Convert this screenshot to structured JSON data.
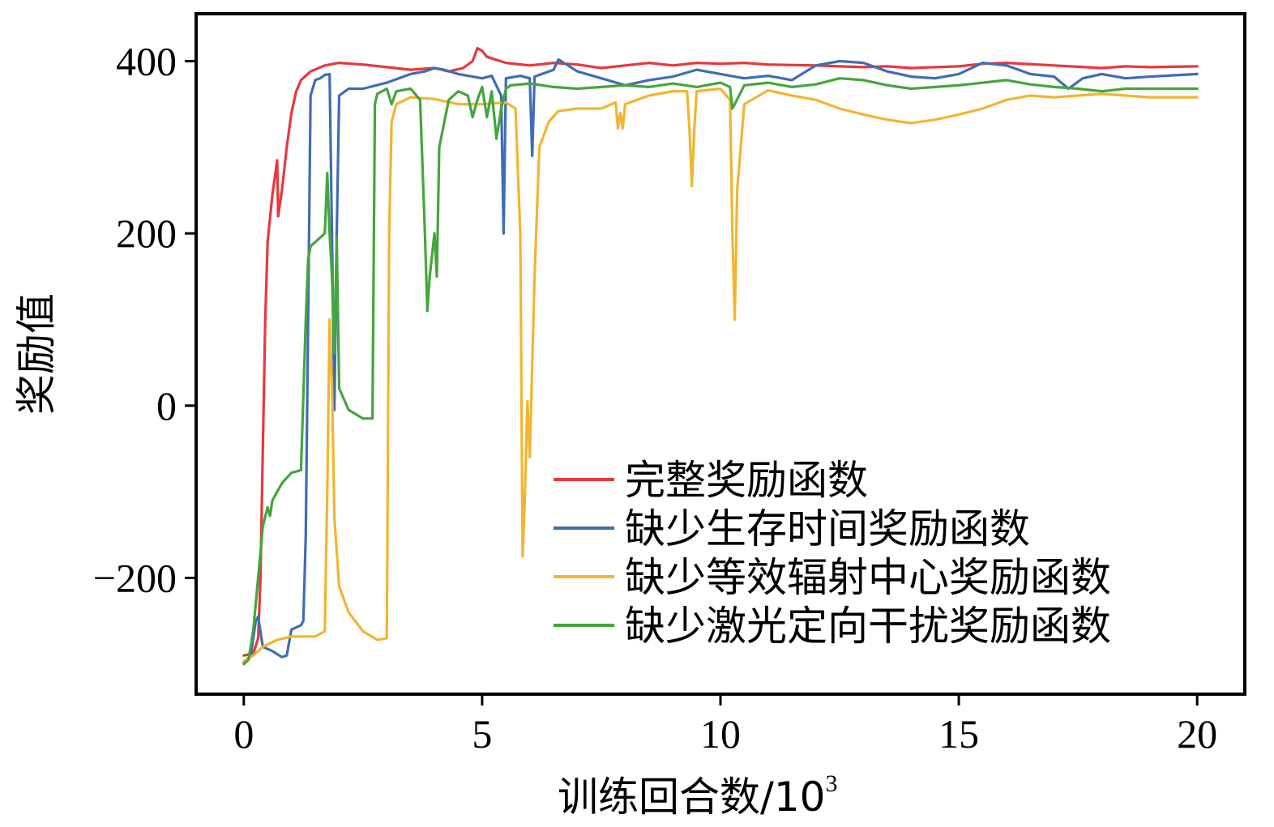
{
  "chart_data": {
    "type": "line",
    "xlabel": "训练回合数/10",
    "xlabel_sup": "3",
    "ylabel": "奖励值",
    "xlim": [
      -1,
      21
    ],
    "ylim": [
      -335,
      455
    ],
    "x_ticks": [
      0,
      5,
      10,
      15,
      20
    ],
    "y_ticks": [
      -200,
      0,
      200,
      400
    ],
    "x_tick_labels": [
      "0",
      "5",
      "10",
      "15",
      "20"
    ],
    "y_tick_labels": [
      "−200",
      "0",
      "200",
      "400"
    ],
    "grid": false,
    "legend_position": "bottom-right",
    "series": [
      {
        "name": "完整奖励函数",
        "color": "#e8383d",
        "points": [
          [
            0,
            -290
          ],
          [
            0.2,
            -288
          ],
          [
            0.3,
            -270
          ],
          [
            0.35,
            -200
          ],
          [
            0.4,
            -50
          ],
          [
            0.45,
            100
          ],
          [
            0.5,
            190
          ],
          [
            0.6,
            245
          ],
          [
            0.7,
            285
          ],
          [
            0.72,
            220
          ],
          [
            0.8,
            250
          ],
          [
            0.9,
            300
          ],
          [
            1.0,
            340
          ],
          [
            1.1,
            365
          ],
          [
            1.2,
            378
          ],
          [
            1.4,
            388
          ],
          [
            1.7,
            395
          ],
          [
            2.0,
            398
          ],
          [
            2.5,
            396
          ],
          [
            3.0,
            393
          ],
          [
            3.5,
            390
          ],
          [
            4.0,
            392
          ],
          [
            4.3,
            388
          ],
          [
            4.6,
            392
          ],
          [
            4.8,
            400
          ],
          [
            4.9,
            415
          ],
          [
            5.0,
            412
          ],
          [
            5.1,
            405
          ],
          [
            5.5,
            398
          ],
          [
            6.0,
            395
          ],
          [
            6.5,
            398
          ],
          [
            7.0,
            396
          ],
          [
            7.5,
            392
          ],
          [
            8.0,
            395
          ],
          [
            8.5,
            398
          ],
          [
            9.0,
            395
          ],
          [
            9.5,
            398
          ],
          [
            10.0,
            397
          ],
          [
            10.5,
            398
          ],
          [
            11.0,
            396
          ],
          [
            12.0,
            395
          ],
          [
            13.0,
            393
          ],
          [
            13.5,
            394
          ],
          [
            14.0,
            392
          ],
          [
            15.0,
            394
          ],
          [
            15.5,
            397
          ],
          [
            16.0,
            398
          ],
          [
            17.0,
            395
          ],
          [
            18.0,
            392
          ],
          [
            18.5,
            394
          ],
          [
            19.0,
            393
          ],
          [
            20.0,
            394
          ]
        ]
      },
      {
        "name": "缺少生存时间奖励函数",
        "color": "#3f6db5",
        "points": [
          [
            0,
            -298
          ],
          [
            0.15,
            -290
          ],
          [
            0.25,
            -250
          ],
          [
            0.3,
            -245
          ],
          [
            0.4,
            -280
          ],
          [
            0.6,
            -285
          ],
          [
            0.8,
            -292
          ],
          [
            0.9,
            -290
          ],
          [
            1.0,
            -260
          ],
          [
            1.2,
            -255
          ],
          [
            1.25,
            -250
          ],
          [
            1.3,
            -150
          ],
          [
            1.35,
            100
          ],
          [
            1.4,
            360
          ],
          [
            1.5,
            378
          ],
          [
            1.6,
            380
          ],
          [
            1.7,
            384
          ],
          [
            1.8,
            385
          ],
          [
            1.85,
            200
          ],
          [
            1.9,
            -5
          ],
          [
            1.95,
            200
          ],
          [
            2.0,
            360
          ],
          [
            2.2,
            368
          ],
          [
            2.5,
            368
          ],
          [
            3.0,
            375
          ],
          [
            3.5,
            385
          ],
          [
            3.8,
            388
          ],
          [
            4.0,
            392
          ],
          [
            4.2,
            390
          ],
          [
            4.5,
            385
          ],
          [
            5.0,
            380
          ],
          [
            5.2,
            383
          ],
          [
            5.4,
            360
          ],
          [
            5.45,
            200
          ],
          [
            5.5,
            380
          ],
          [
            5.8,
            383
          ],
          [
            6.0,
            380
          ],
          [
            6.05,
            290
          ],
          [
            6.1,
            382
          ],
          [
            6.5,
            390
          ],
          [
            6.6,
            402
          ],
          [
            6.8,
            395
          ],
          [
            7.0,
            388
          ],
          [
            7.5,
            380
          ],
          [
            8.0,
            372
          ],
          [
            8.5,
            378
          ],
          [
            9.0,
            382
          ],
          [
            9.5,
            390
          ],
          [
            10.0,
            385
          ],
          [
            10.5,
            380
          ],
          [
            11.0,
            383
          ],
          [
            11.5,
            378
          ],
          [
            12.0,
            395
          ],
          [
            12.5,
            400
          ],
          [
            13.0,
            398
          ],
          [
            13.5,
            388
          ],
          [
            14.0,
            382
          ],
          [
            14.5,
            380
          ],
          [
            15.0,
            385
          ],
          [
            15.5,
            398
          ],
          [
            16.0,
            395
          ],
          [
            16.5,
            385
          ],
          [
            17.0,
            382
          ],
          [
            17.3,
            368
          ],
          [
            17.6,
            380
          ],
          [
            18.0,
            385
          ],
          [
            18.5,
            380
          ],
          [
            19.0,
            382
          ],
          [
            20.0,
            385
          ]
        ]
      },
      {
        "name": "缺少等效辐射中心奖励函数",
        "color": "#f2b530",
        "points": [
          [
            0,
            -297
          ],
          [
            0.2,
            -290
          ],
          [
            0.4,
            -280
          ],
          [
            0.7,
            -272
          ],
          [
            1.0,
            -268
          ],
          [
            1.5,
            -268
          ],
          [
            1.7,
            -262
          ],
          [
            1.75,
            -100
          ],
          [
            1.8,
            100
          ],
          [
            1.85,
            25
          ],
          [
            1.9,
            -130
          ],
          [
            2.0,
            -210
          ],
          [
            2.2,
            -240
          ],
          [
            2.5,
            -262
          ],
          [
            2.8,
            -272
          ],
          [
            3.0,
            -270
          ],
          [
            3.05,
            200
          ],
          [
            3.1,
            330
          ],
          [
            3.2,
            350
          ],
          [
            3.5,
            358
          ],
          [
            4.0,
            356
          ],
          [
            4.5,
            350
          ],
          [
            5.0,
            350
          ],
          [
            5.5,
            352
          ],
          [
            5.7,
            345
          ],
          [
            5.8,
            200
          ],
          [
            5.85,
            -175
          ],
          [
            5.9,
            -100
          ],
          [
            5.95,
            5
          ],
          [
            6.0,
            -60
          ],
          [
            6.1,
            150
          ],
          [
            6.2,
            300
          ],
          [
            6.4,
            330
          ],
          [
            6.6,
            342
          ],
          [
            7.0,
            345
          ],
          [
            7.5,
            345
          ],
          [
            7.8,
            352
          ],
          [
            7.85,
            322
          ],
          [
            7.9,
            340
          ],
          [
            7.95,
            322
          ],
          [
            8.0,
            350
          ],
          [
            8.5,
            360
          ],
          [
            9.0,
            365
          ],
          [
            9.3,
            365
          ],
          [
            9.35,
            320
          ],
          [
            9.4,
            255
          ],
          [
            9.45,
            320
          ],
          [
            9.5,
            365
          ],
          [
            10.0,
            368
          ],
          [
            10.2,
            355
          ],
          [
            10.25,
            200
          ],
          [
            10.3,
            100
          ],
          [
            10.35,
            250
          ],
          [
            10.5,
            350
          ],
          [
            11.0,
            366
          ],
          [
            11.5,
            360
          ],
          [
            12.0,
            355
          ],
          [
            12.5,
            345
          ],
          [
            13.0,
            338
          ],
          [
            13.5,
            332
          ],
          [
            14.0,
            328
          ],
          [
            14.5,
            332
          ],
          [
            15.0,
            338
          ],
          [
            15.5,
            345
          ],
          [
            16.0,
            355
          ],
          [
            16.5,
            360
          ],
          [
            17.0,
            358
          ],
          [
            17.5,
            360
          ],
          [
            18.0,
            362
          ],
          [
            19.0,
            358
          ],
          [
            20.0,
            358
          ]
        ]
      },
      {
        "name": "缺少激光定向干扰奖励函数",
        "color": "#46a53c",
        "points": [
          [
            0,
            -300
          ],
          [
            0.1,
            -295
          ],
          [
            0.2,
            -260
          ],
          [
            0.3,
            -200
          ],
          [
            0.4,
            -140
          ],
          [
            0.5,
            -118
          ],
          [
            0.55,
            -128
          ],
          [
            0.6,
            -110
          ],
          [
            0.8,
            -90
          ],
          [
            1.0,
            -78
          ],
          [
            1.2,
            -75
          ],
          [
            1.3,
            100
          ],
          [
            1.35,
            170
          ],
          [
            1.4,
            185
          ],
          [
            1.5,
            190
          ],
          [
            1.6,
            195
          ],
          [
            1.7,
            200
          ],
          [
            1.75,
            270
          ],
          [
            1.8,
            200
          ],
          [
            1.85,
            150
          ],
          [
            1.9,
            60
          ],
          [
            1.95,
            195
          ],
          [
            2.0,
            20
          ],
          [
            2.2,
            -5
          ],
          [
            2.5,
            -15
          ],
          [
            2.7,
            -15
          ],
          [
            2.75,
            350
          ],
          [
            2.8,
            362
          ],
          [
            3.0,
            368
          ],
          [
            3.1,
            350
          ],
          [
            3.2,
            365
          ],
          [
            3.5,
            368
          ],
          [
            3.7,
            355
          ],
          [
            3.8,
            200
          ],
          [
            3.85,
            110
          ],
          [
            3.9,
            150
          ],
          [
            4.0,
            200
          ],
          [
            4.05,
            150
          ],
          [
            4.1,
            300
          ],
          [
            4.3,
            355
          ],
          [
            4.5,
            365
          ],
          [
            4.7,
            360
          ],
          [
            4.8,
            335
          ],
          [
            4.9,
            355
          ],
          [
            5.0,
            370
          ],
          [
            5.1,
            335
          ],
          [
            5.2,
            365
          ],
          [
            5.3,
            310
          ],
          [
            5.4,
            345
          ],
          [
            5.5,
            368
          ],
          [
            5.6,
            372
          ],
          [
            6.0,
            374
          ],
          [
            6.5,
            370
          ],
          [
            7.0,
            368
          ],
          [
            7.5,
            370
          ],
          [
            8.0,
            372
          ],
          [
            8.5,
            370
          ],
          [
            9.0,
            374
          ],
          [
            9.5,
            370
          ],
          [
            10.0,
            375
          ],
          [
            10.2,
            370
          ],
          [
            10.25,
            345
          ],
          [
            10.3,
            350
          ],
          [
            10.5,
            372
          ],
          [
            11.0,
            375
          ],
          [
            11.5,
            370
          ],
          [
            12.0,
            373
          ],
          [
            12.5,
            380
          ],
          [
            13.0,
            378
          ],
          [
            13.5,
            372
          ],
          [
            14.0,
            368
          ],
          [
            14.5,
            370
          ],
          [
            15.0,
            372
          ],
          [
            15.5,
            375
          ],
          [
            16.0,
            378
          ],
          [
            16.5,
            373
          ],
          [
            17.0,
            370
          ],
          [
            17.5,
            368
          ],
          [
            18.0,
            365
          ],
          [
            18.5,
            368
          ],
          [
            19.0,
            368
          ],
          [
            20.0,
            368
          ]
        ]
      }
    ]
  }
}
